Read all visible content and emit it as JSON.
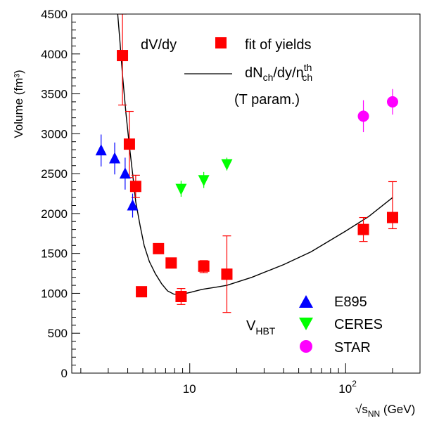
{
  "chart_data": {
    "type": "scatter",
    "title": "",
    "xlabel": "√s_NN (GeV)",
    "ylabel": "Volume (fm³)",
    "xscale": "log",
    "xlim": [
      1.75,
      300
    ],
    "ylim": [
      0,
      4500
    ],
    "yticks": [
      "0",
      "500",
      "1000",
      "1500",
      "2000",
      "2500",
      "3000",
      "3500",
      "4000",
      "4500"
    ],
    "xtick_labels": [
      {
        "value": 10,
        "base": "10",
        "sup": ""
      },
      {
        "value": 100,
        "base": "10",
        "sup": "2"
      }
    ],
    "legend_top": {
      "header": "dV/dy",
      "marker_label": "fit of yields",
      "line_label_main": "dN",
      "line_label_sub1": "ch",
      "line_label_mid": "/dy/n",
      "line_label_sup": "th",
      "line_label_sub2": "ch",
      "line_label_2": "(T param.)"
    },
    "legend_bottom": {
      "header_main": "V",
      "header_sub": "HBT",
      "entries": [
        "E895",
        "CERES",
        "STAR"
      ]
    },
    "series": [
      {
        "name": "fit of yields",
        "marker": "square",
        "color": "#ff0000",
        "points": [
          {
            "x": 3.7,
            "y": 3980,
            "lo": 3360,
            "hi": 4500
          },
          {
            "x": 4.1,
            "y": 2870,
            "lo": 2450,
            "hi": 3280
          },
          {
            "x": 4.5,
            "y": 2340,
            "lo": 2200,
            "hi": 2480
          },
          {
            "x": 4.9,
            "y": 1020,
            "lo": 1020,
            "hi": 1020
          },
          {
            "x": 6.3,
            "y": 1560,
            "lo": 1560,
            "hi": 1560
          },
          {
            "x": 7.6,
            "y": 1380,
            "lo": 1380,
            "hi": 1380
          },
          {
            "x": 8.8,
            "y": 960,
            "lo": 860,
            "hi": 1060
          },
          {
            "x": 12.3,
            "y": 1340,
            "lo": 1260,
            "hi": 1410
          },
          {
            "x": 17.3,
            "y": 1240,
            "lo": 760,
            "hi": 1720
          },
          {
            "x": 130,
            "y": 1800,
            "lo": 1650,
            "hi": 1950
          },
          {
            "x": 200,
            "y": 1950,
            "lo": 1810,
            "hi": 2400
          }
        ]
      },
      {
        "name": "E895",
        "marker": "triangle-up",
        "color": "#0000ff",
        "points": [
          {
            "x": 2.7,
            "y": 2790,
            "lo": 2590,
            "hi": 2990
          },
          {
            "x": 3.3,
            "y": 2690,
            "lo": 2490,
            "hi": 2890
          },
          {
            "x": 3.85,
            "y": 2500,
            "lo": 2300,
            "hi": 2700
          },
          {
            "x": 4.3,
            "y": 2100,
            "lo": 1950,
            "hi": 2250
          }
        ]
      },
      {
        "name": "CERES",
        "marker": "triangle-down",
        "color": "#00ff00",
        "points": [
          {
            "x": 8.8,
            "y": 2310,
            "lo": 2210,
            "hi": 2410
          },
          {
            "x": 12.3,
            "y": 2420,
            "lo": 2320,
            "hi": 2520
          },
          {
            "x": 17.3,
            "y": 2620,
            "lo": 2540,
            "hi": 2700
          }
        ]
      },
      {
        "name": "STAR",
        "marker": "circle",
        "color": "#ff00ff",
        "points": [
          {
            "x": 130,
            "y": 3220,
            "lo": 3020,
            "hi": 3420
          },
          {
            "x": 200,
            "y": 3400,
            "lo": 3240,
            "hi": 3560
          }
        ]
      }
    ],
    "curve": {
      "name": "dNch/dy/nch th (T param.)",
      "color": "#000000",
      "points": [
        {
          "x": 3.45,
          "y": 4500
        },
        {
          "x": 3.55,
          "y": 4200
        },
        {
          "x": 3.7,
          "y": 3750
        },
        {
          "x": 3.9,
          "y": 3250
        },
        {
          "x": 4.1,
          "y": 2850
        },
        {
          "x": 4.3,
          "y": 2500
        },
        {
          "x": 4.5,
          "y": 2150
        },
        {
          "x": 4.8,
          "y": 1850
        },
        {
          "x": 5.1,
          "y": 1600
        },
        {
          "x": 5.5,
          "y": 1400
        },
        {
          "x": 6.0,
          "y": 1250
        },
        {
          "x": 6.6,
          "y": 1120
        },
        {
          "x": 7.2,
          "y": 1030
        },
        {
          "x": 7.9,
          "y": 990
        },
        {
          "x": 8.8,
          "y": 985
        },
        {
          "x": 10,
          "y": 1010
        },
        {
          "x": 12,
          "y": 1050
        },
        {
          "x": 15,
          "y": 1080
        },
        {
          "x": 17.3,
          "y": 1100
        },
        {
          "x": 25,
          "y": 1200
        },
        {
          "x": 40,
          "y": 1360
        },
        {
          "x": 60,
          "y": 1520
        },
        {
          "x": 100,
          "y": 1780
        },
        {
          "x": 140,
          "y": 1960
        },
        {
          "x": 200,
          "y": 2200
        }
      ]
    }
  }
}
